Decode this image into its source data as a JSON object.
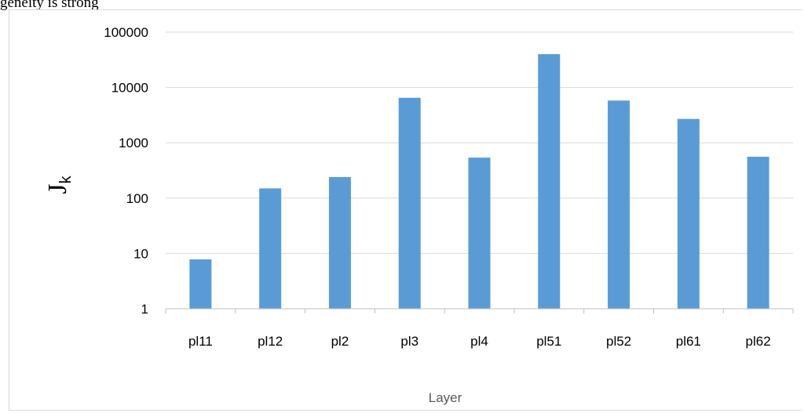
{
  "header": {
    "caption_fragment": "geneity is strong"
  },
  "chart_data": {
    "type": "bar",
    "categories": [
      "pl11",
      "pl12",
      "pl2",
      "pl3",
      "pl4",
      "pl51",
      "pl52",
      "pl61",
      "pl62"
    ],
    "values": [
      7.8,
      150,
      240,
      6500,
      540,
      40000,
      5800,
      2700,
      560
    ],
    "title": "",
    "xlabel": "Layer",
    "ylabel_main": "J",
    "ylabel_sub": "k",
    "yscale": "log",
    "ylim": [
      1,
      100000
    ],
    "yticks": [
      "1",
      "10",
      "100",
      "1000",
      "10000",
      "100000"
    ],
    "grid": true,
    "legend": "none",
    "bar_color": "#5b9bd5"
  }
}
